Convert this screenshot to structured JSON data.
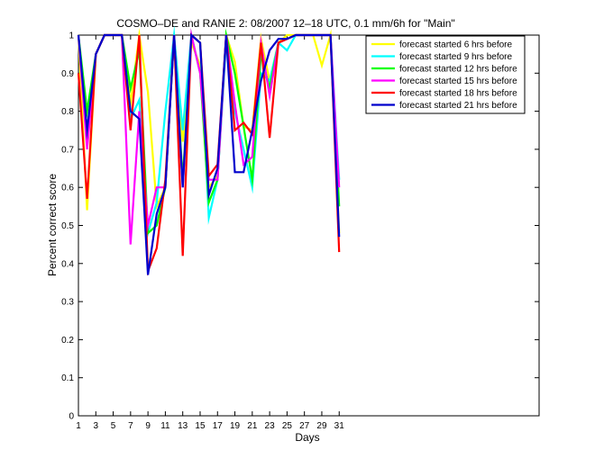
{
  "chart_data": {
    "type": "line",
    "title": "COSMO–DE and RANIE 2: 08/2007 12–18 UTC, 0.1 mm/6h for \"Main\"",
    "xlabel": "Days",
    "ylabel": "Percent correct score",
    "xlim": [
      1,
      54
    ],
    "ylim": [
      0,
      1
    ],
    "xticks": [
      1,
      3,
      5,
      7,
      9,
      11,
      13,
      15,
      17,
      19,
      21,
      23,
      25,
      27,
      29,
      31
    ],
    "yticks": [
      0,
      0.1,
      0.2,
      0.3,
      0.4,
      0.5,
      0.6,
      0.7,
      0.8,
      0.9,
      1
    ],
    "grid": false,
    "legend_position": "top-right",
    "series": [
      {
        "name": "forecast started 6 hrs before",
        "color": "#ffff00",
        "x": [
          1,
          2,
          3,
          4,
          5,
          6,
          7,
          8,
          9,
          10,
          11,
          12,
          13,
          14,
          15,
          16,
          17,
          18,
          19,
          20,
          21,
          22,
          23,
          24,
          25,
          26,
          27,
          28,
          29,
          30,
          31
        ],
        "values": [
          1.0,
          0.54,
          0.95,
          1.0,
          1.0,
          1.0,
          0.82,
          1.0,
          0.85,
          0.55,
          0.6,
          1.0,
          0.72,
          0.98,
          0.92,
          0.6,
          0.63,
          1.0,
          0.93,
          0.76,
          0.75,
          0.99,
          0.88,
          0.98,
          1.0,
          1.0,
          1.0,
          1.0,
          0.92,
          1.0,
          0.48
        ]
      },
      {
        "name": "forecast started 9 hrs before",
        "color": "#00ffff",
        "x": [
          1,
          2,
          3,
          4,
          5,
          6,
          7,
          8,
          9,
          10,
          11,
          12,
          13,
          14,
          15,
          16,
          17,
          18,
          19,
          20,
          21,
          22,
          23,
          24,
          25,
          26,
          27,
          28,
          29,
          30,
          31
        ],
        "values": [
          1.0,
          0.75,
          0.95,
          1.0,
          1.0,
          1.0,
          0.78,
          0.83,
          0.48,
          0.56,
          0.8,
          1.0,
          0.75,
          1.0,
          0.98,
          0.52,
          0.62,
          0.98,
          0.8,
          0.7,
          0.6,
          0.9,
          0.88,
          0.98,
          0.96,
          1.0,
          1.0,
          1.0,
          1.0,
          1.0,
          0.62
        ]
      },
      {
        "name": "forecast started 12 hrs before",
        "color": "#00ff00",
        "x": [
          1,
          2,
          3,
          4,
          5,
          6,
          7,
          8,
          9,
          10,
          11,
          12,
          13,
          14,
          15,
          16,
          17,
          18,
          19,
          20,
          21,
          22,
          23,
          24,
          25,
          26,
          27,
          28,
          29,
          30,
          31
        ],
        "values": [
          1.0,
          0.8,
          0.95,
          1.0,
          1.0,
          1.0,
          0.86,
          0.96,
          0.48,
          0.5,
          0.6,
          1.0,
          0.62,
          1.0,
          0.9,
          0.56,
          0.62,
          1.0,
          0.9,
          0.76,
          0.62,
          0.95,
          0.86,
          0.98,
          0.99,
          1.0,
          1.0,
          1.0,
          1.0,
          1.0,
          0.55
        ]
      },
      {
        "name": "forecast started 15 hrs before",
        "color": "#ff00ff",
        "x": [
          1,
          2,
          3,
          4,
          5,
          6,
          7,
          8,
          9,
          10,
          11,
          12,
          13,
          14,
          15,
          16,
          17,
          18,
          19,
          20,
          21,
          22,
          23,
          24,
          25,
          26,
          27,
          28,
          29,
          30,
          31
        ],
        "values": [
          1.0,
          0.7,
          0.95,
          1.0,
          1.0,
          1.0,
          0.45,
          0.8,
          0.5,
          0.6,
          0.6,
          1.0,
          0.6,
          1.0,
          0.9,
          0.62,
          0.62,
          1.0,
          0.82,
          0.66,
          0.68,
          0.98,
          0.84,
          0.98,
          0.99,
          1.0,
          1.0,
          1.0,
          1.0,
          1.0,
          0.6
        ]
      },
      {
        "name": "forecast started 18 hrs before",
        "color": "#ff0000",
        "x": [
          1,
          2,
          3,
          4,
          5,
          6,
          7,
          8,
          9,
          10,
          11,
          12,
          13,
          14,
          15,
          16,
          17,
          18,
          19,
          20,
          21,
          22,
          23,
          24,
          25,
          26,
          27,
          28,
          29,
          30,
          31
        ],
        "values": [
          0.9,
          0.57,
          0.95,
          1.0,
          1.0,
          1.0,
          0.75,
          1.0,
          0.38,
          0.44,
          0.62,
          1.0,
          0.42,
          1.0,
          0.98,
          0.63,
          0.66,
          1.0,
          0.75,
          0.77,
          0.74,
          0.98,
          0.73,
          0.98,
          0.99,
          1.0,
          1.0,
          1.0,
          1.0,
          1.0,
          0.43
        ]
      },
      {
        "name": "forecast started 21 hrs before",
        "color": "#0000cc",
        "x": [
          1,
          2,
          3,
          4,
          5,
          6,
          7,
          8,
          9,
          10,
          11,
          12,
          13,
          14,
          15,
          16,
          17,
          18,
          19,
          20,
          21,
          22,
          23,
          24,
          25,
          26,
          27,
          28,
          29,
          30,
          31
        ],
        "values": [
          1.0,
          0.75,
          0.95,
          1.0,
          1.0,
          1.0,
          0.8,
          0.78,
          0.37,
          0.53,
          0.6,
          1.0,
          0.6,
          1.0,
          0.98,
          0.58,
          0.65,
          1.0,
          0.64,
          0.64,
          0.75,
          0.88,
          0.96,
          0.99,
          0.99,
          1.0,
          1.0,
          1.0,
          1.0,
          1.0,
          0.47
        ]
      }
    ]
  }
}
